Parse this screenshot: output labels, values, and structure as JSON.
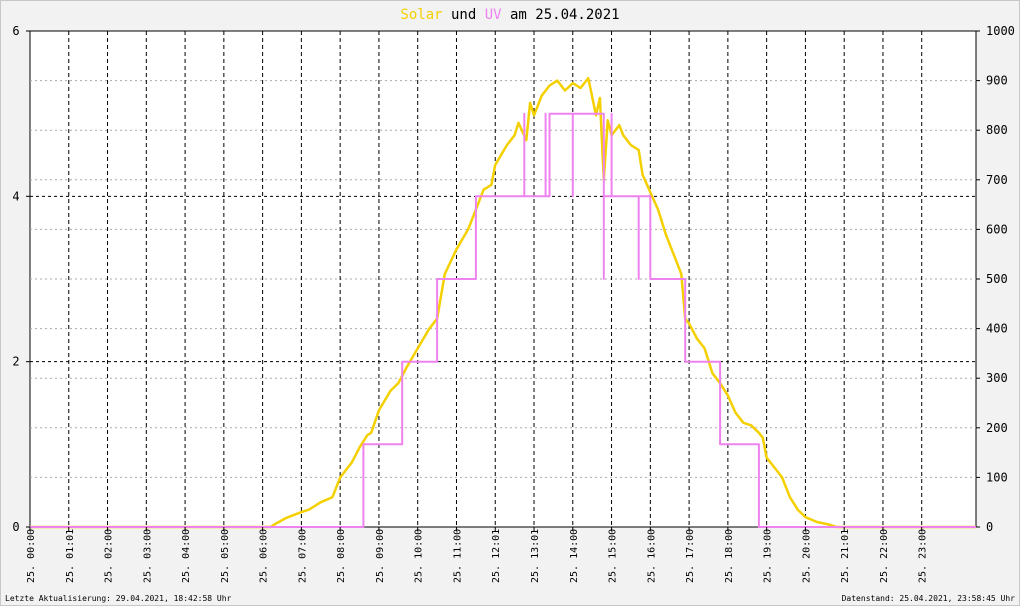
{
  "title": {
    "part1": "Solar",
    "part2": " und ",
    "part3": "UV",
    "part4": " am 25.04.2021"
  },
  "footer": {
    "left": "Letzte Aktualisierung: 29.04.2021, 18:42:58 Uhr",
    "right": "Datenstand: 25.04.2021, 23:58:45 Uhr"
  },
  "colors": {
    "solar": "#f5d000",
    "uv": "#ee82ee",
    "background": "#ffffff",
    "frame": "#f2f2f2"
  },
  "chart_data": {
    "type": "line",
    "title": "Solar und UV am 25.04.2021",
    "grid": true,
    "y_left": {
      "min": 0,
      "max": 6,
      "ticks": [
        0,
        2,
        4,
        6
      ]
    },
    "y_right": {
      "min": 0,
      "max": 1000,
      "ticks": [
        0,
        100,
        200,
        300,
        400,
        500,
        600,
        700,
        800,
        900,
        1000
      ]
    },
    "x_range": [
      0,
      24.4
    ],
    "x_tick_labels": [
      "25. 00:00",
      "25. 01:01",
      "25. 02:00",
      "25. 03:00",
      "25. 04:00",
      "25. 05:00",
      "25. 06:00",
      "25. 07:00",
      "25. 08:00",
      "25. 09:00",
      "25. 10:00",
      "25. 11:00",
      "25. 12:01",
      "25. 13:01",
      "25. 14:00",
      "25. 15:00",
      "25. 16:00",
      "25. 17:00",
      "25. 18:00",
      "25. 19:00",
      "25. 20:00",
      "25. 21:01",
      "25. 22:00",
      "25. 23:00"
    ],
    "series": [
      {
        "name": "Solar",
        "axis": "right",
        "x": [
          0,
          6.2,
          6.3,
          6.6,
          7.0,
          7.2,
          7.5,
          7.8,
          8.0,
          8.3,
          8.5,
          8.7,
          8.8,
          9.0,
          9.3,
          9.5,
          9.7,
          10.0,
          10.3,
          10.5,
          10.7,
          11.0,
          11.3,
          11.5,
          11.7,
          11.9,
          12.0,
          12.3,
          12.5,
          12.6,
          12.8,
          12.9,
          13.0,
          13.2,
          13.4,
          13.6,
          13.8,
          14.0,
          14.2,
          14.4,
          14.6,
          14.7,
          14.8,
          14.9,
          15.0,
          15.2,
          15.3,
          15.5,
          15.7,
          15.8,
          16.0,
          16.2,
          16.4,
          16.6,
          16.8,
          16.9,
          17.0,
          17.2,
          17.4,
          17.6,
          17.8,
          18.0,
          18.2,
          18.4,
          18.6,
          18.8,
          18.9,
          19.0,
          19.2,
          19.4,
          19.6,
          19.8,
          20.0,
          20.3,
          20.6,
          20.8,
          24.4
        ],
        "values": [
          0,
          0,
          5,
          18,
          30,
          35,
          50,
          60,
          100,
          130,
          160,
          185,
          190,
          235,
          275,
          290,
          320,
          360,
          400,
          420,
          510,
          560,
          600,
          640,
          680,
          690,
          730,
          770,
          790,
          815,
          780,
          855,
          830,
          870,
          890,
          900,
          880,
          895,
          885,
          905,
          830,
          865,
          700,
          820,
          790,
          810,
          790,
          770,
          760,
          710,
          675,
          640,
          590,
          550,
          510,
          420,
          410,
          380,
          360,
          310,
          290,
          265,
          230,
          210,
          205,
          190,
          180,
          140,
          120,
          100,
          60,
          35,
          20,
          10,
          5,
          0,
          0
        ]
      },
      {
        "name": "UV",
        "axis": "left",
        "x": [
          0,
          8.6,
          8.6,
          9.6,
          9.6,
          10.5,
          10.5,
          11.5,
          11.5,
          12.75,
          12.75,
          12.75,
          13.3,
          13.3,
          13.3,
          13.4,
          13.4,
          14.0,
          14.0,
          14.0,
          14.8,
          14.8,
          14.8,
          15.0,
          15.0,
          15.0,
          15.7,
          15.7,
          15.7,
          16.0,
          16.0,
          16.9,
          16.9,
          17.8,
          17.8,
          18.8,
          18.8,
          24.4
        ],
        "values": [
          0,
          0,
          1,
          1,
          2,
          2,
          3,
          3,
          4,
          4,
          5,
          4,
          4,
          5,
          4,
          4,
          5,
          5,
          4,
          5,
          5,
          3,
          4,
          4,
          5,
          4,
          4,
          3,
          4,
          4,
          3,
          3,
          2,
          2,
          1,
          1,
          0,
          0
        ]
      }
    ]
  }
}
